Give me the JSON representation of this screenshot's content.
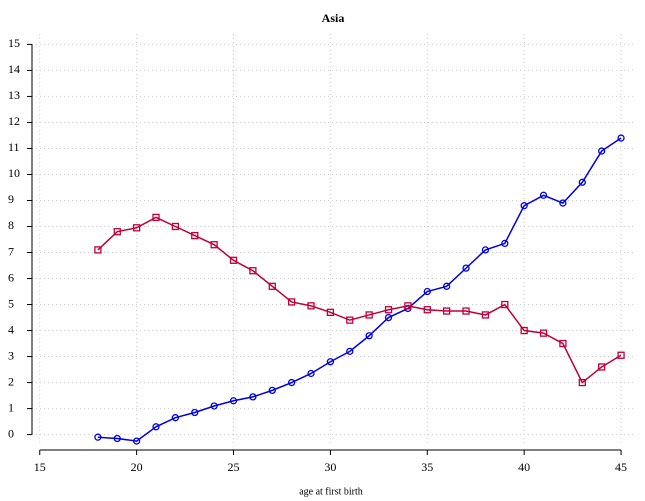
{
  "chart_data": {
    "type": "line",
    "title": "Asia",
    "x_label": "age at first birth",
    "x": [
      18,
      19,
      20,
      21,
      22,
      23,
      24,
      25,
      26,
      27,
      28,
      29,
      30,
      31,
      32,
      33,
      34,
      35,
      36,
      37,
      38,
      39,
      40,
      41,
      42,
      43,
      44,
      45
    ],
    "series": [
      {
        "color": "#0000e0",
        "marker": "circle",
        "values": [
          -0.1,
          -0.15,
          -0.25,
          0.3,
          0.65,
          0.85,
          1.1,
          1.3,
          1.45,
          1.7,
          2.0,
          2.35,
          2.8,
          3.2,
          3.8,
          4.5,
          4.85,
          5.5,
          5.7,
          6.4,
          7.1,
          7.35,
          8.8,
          9.2,
          8.9,
          9.7,
          10.9,
          11.4
        ]
      },
      {
        "color": "#c0003a",
        "marker": "square",
        "values": [
          7.1,
          7.8,
          7.95,
          8.35,
          8.0,
          7.65,
          7.3,
          6.7,
          6.3,
          5.7,
          5.1,
          4.95,
          4.7,
          4.4,
          4.6,
          4.8,
          4.95,
          4.8,
          4.75,
          4.75,
          4.6,
          5.0,
          4.0,
          3.9,
          3.5,
          2.0,
          2.6,
          3.05
        ]
      }
    ],
    "xlim": [
      14.6,
      45.72
    ],
    "xticks": [
      15,
      20,
      25,
      30,
      35,
      40,
      45
    ],
    "ylim": [
      -0.4,
      15.4
    ],
    "yticks": [
      0,
      1,
      2,
      3,
      4,
      5,
      6,
      7,
      8,
      9,
      10,
      11,
      12,
      13,
      14,
      15
    ],
    "grid": true
  }
}
